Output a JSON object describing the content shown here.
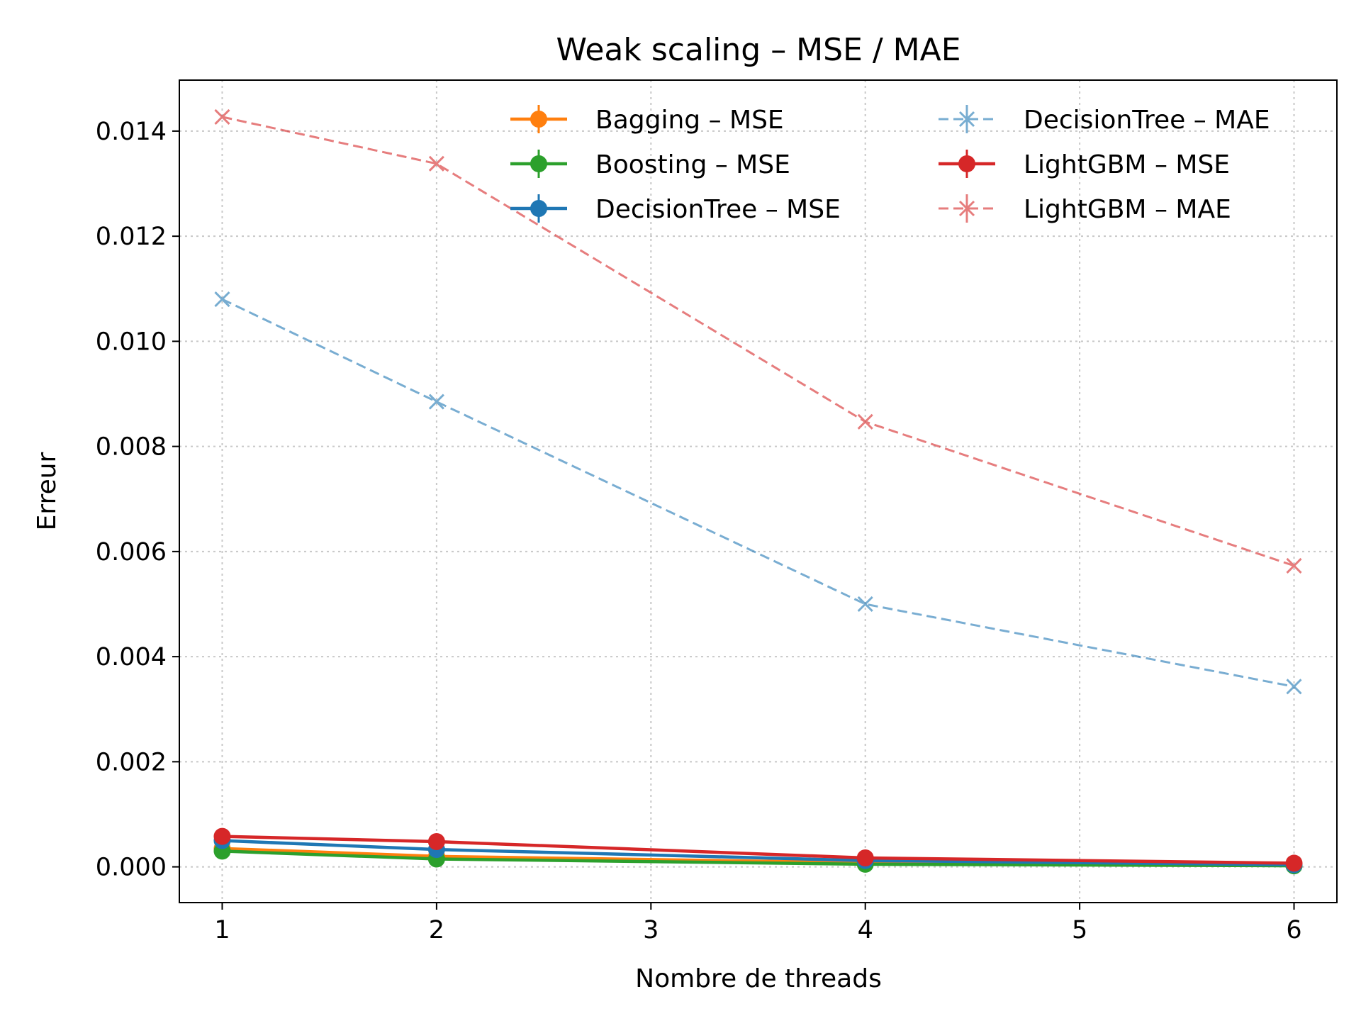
{
  "chart_data": {
    "type": "line",
    "title": "Weak scaling – MSE / MAE",
    "xlabel": "Nombre de threads",
    "ylabel": "Erreur",
    "xlim": [
      0.8,
      6.2
    ],
    "ylim": [
      -0.00068,
      0.01497
    ],
    "xticks": [
      1,
      2,
      3,
      4,
      5,
      6
    ],
    "xtick_labels": [
      "1",
      "2",
      "3",
      "4",
      "5",
      "6"
    ],
    "yticks": [
      0.0,
      0.002,
      0.004,
      0.006,
      0.008,
      0.01,
      0.012,
      0.014
    ],
    "ytick_labels": [
      "0.000",
      "0.002",
      "0.004",
      "0.006",
      "0.008",
      "0.010",
      "0.012",
      "0.014"
    ],
    "grid": true,
    "legend": {
      "placement": "top-right",
      "columns": 2
    },
    "series": [
      {
        "name": "Bagging – MSE",
        "color": "#ff7f0e",
        "style": "solid",
        "marker": "circle",
        "opacity": 1,
        "x": [
          1,
          2,
          4,
          6
        ],
        "y": [
          0.00035,
          0.0002,
          8e-05,
          3e-05
        ]
      },
      {
        "name": "Boosting – MSE",
        "color": "#2ca02c",
        "style": "solid",
        "marker": "circle",
        "opacity": 1,
        "x": [
          1,
          2,
          4,
          6
        ],
        "y": [
          0.0003,
          0.00015,
          5e-05,
          2e-05
        ]
      },
      {
        "name": "DecisionTree – MSE",
        "color": "#1f77b4",
        "style": "solid",
        "marker": "circle",
        "opacity": 1,
        "x": [
          1,
          2,
          4,
          6
        ],
        "y": [
          0.0005,
          0.00033,
          0.00012,
          4e-05
        ]
      },
      {
        "name": "DecisionTree – MAE",
        "color": "#1f77b4",
        "style": "dashed",
        "marker": "x",
        "opacity": 0.6,
        "x": [
          1,
          2,
          4,
          6
        ],
        "y": [
          0.0108,
          0.00885,
          0.005,
          0.00343
        ]
      },
      {
        "name": "LightGBM – MSE",
        "color": "#d62728",
        "style": "solid",
        "marker": "circle",
        "opacity": 1,
        "x": [
          1,
          2,
          4,
          6
        ],
        "y": [
          0.00058,
          0.00048,
          0.00017,
          7e-05
        ]
      },
      {
        "name": "LightGBM – MAE",
        "color": "#d62728",
        "style": "dashed",
        "marker": "x",
        "opacity": 0.6,
        "x": [
          1,
          2,
          4,
          6
        ],
        "y": [
          0.01427,
          0.01338,
          0.00847,
          0.00573
        ]
      }
    ],
    "draw_order": [
      0,
      1,
      2,
      4,
      3,
      5
    ]
  }
}
